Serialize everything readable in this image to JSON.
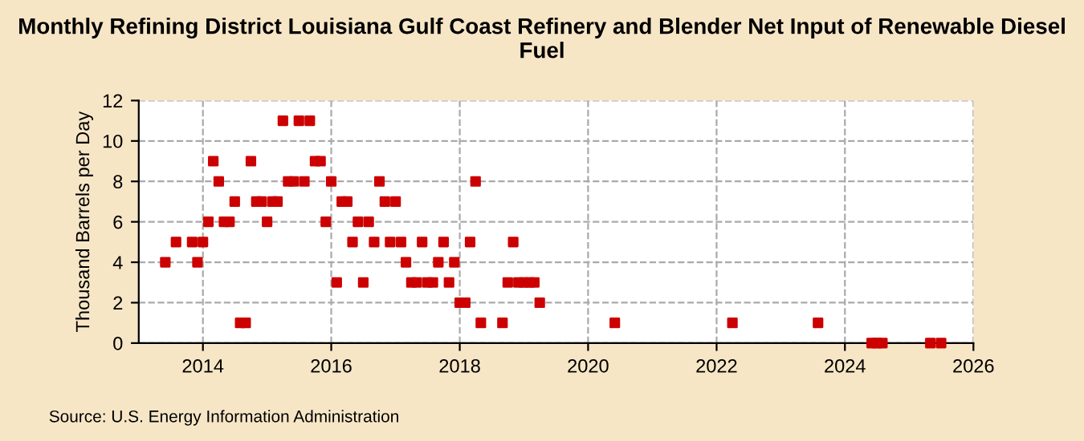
{
  "chart_data": {
    "type": "scatter",
    "title": "Monthly Refining District Louisiana Gulf Coast Refinery and Blender Net Input of Renewable Diesel Fuel",
    "ylabel": "Thousand Barrels per Day",
    "x": [
      "2013-06",
      "2013-08",
      "2013-11",
      "2013-12",
      "2014-01",
      "2014-02",
      "2014-03",
      "2014-04",
      "2014-05",
      "2014-06",
      "2014-07",
      "2014-08",
      "2014-09",
      "2014-10",
      "2014-11",
      "2014-12",
      "2015-01",
      "2015-02",
      "2015-03",
      "2015-04",
      "2015-05",
      "2015-06",
      "2015-07",
      "2015-08",
      "2015-09",
      "2015-10",
      "2015-11",
      "2015-12",
      "2016-01",
      "2016-02",
      "2016-03",
      "2016-04",
      "2016-05",
      "2016-06",
      "2016-07",
      "2016-08",
      "2016-09",
      "2016-10",
      "2016-11",
      "2016-12",
      "2017-01",
      "2017-02",
      "2017-03",
      "2017-04",
      "2017-05",
      "2017-06",
      "2017-07",
      "2017-08",
      "2017-09",
      "2017-10",
      "2017-11",
      "2017-12",
      "2018-01",
      "2018-02",
      "2018-03",
      "2018-04",
      "2018-05",
      "2018-09",
      "2018-10",
      "2018-11",
      "2018-12",
      "2019-01",
      "2019-02",
      "2019-03",
      "2019-04",
      "2020-06",
      "2022-04",
      "2023-08",
      "2024-06",
      "2024-07",
      "2024-08",
      "2025-05",
      "2025-07"
    ],
    "values": [
      4,
      5,
      5,
      4,
      5,
      6,
      9,
      8,
      6,
      6,
      7,
      1,
      1,
      9,
      7,
      7,
      6,
      7,
      7,
      11,
      8,
      8,
      11,
      8,
      11,
      9,
      9,
      6,
      8,
      3,
      7,
      7,
      5,
      6,
      3,
      6,
      5,
      8,
      7,
      5,
      7,
      5,
      4,
      3,
      3,
      5,
      3,
      3,
      4,
      5,
      3,
      4,
      2,
      2,
      5,
      8,
      1,
      1,
      3,
      5,
      3,
      3,
      3,
      3,
      2,
      1,
      1,
      1,
      0,
      0,
      0,
      0,
      0
    ],
    "color": "#cc0000",
    "marker": "square",
    "grid": true,
    "xlim": [
      "2013",
      "2026"
    ],
    "xticks": [
      "2014",
      "2016",
      "2018",
      "2020",
      "2022",
      "2024",
      "2026"
    ],
    "ylim": [
      0,
      12
    ],
    "yticks": [
      0,
      2,
      4,
      6,
      8,
      10,
      12
    ],
    "annotations": [
      "Source: U.S. Energy Information Administration"
    ]
  }
}
